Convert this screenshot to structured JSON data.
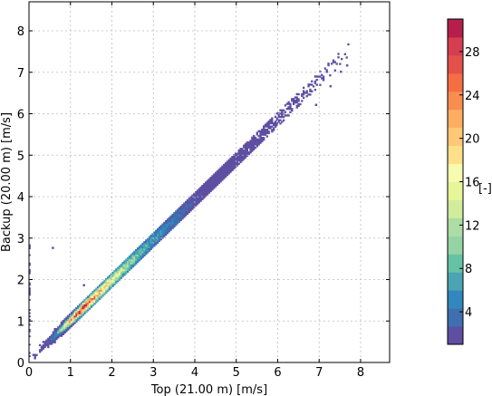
{
  "chart_data": {
    "type": "heatmap",
    "title": "",
    "xlabel": "Top (21.00 m) [m/s]",
    "ylabel": "Backup (20.00 m) [m/s]",
    "xlim": [
      0,
      8.7
    ],
    "ylim": [
      0,
      8.7
    ],
    "xticks": [
      0,
      1,
      2,
      3,
      4,
      5,
      6,
      7,
      8
    ],
    "yticks": [
      0,
      1,
      2,
      3,
      4,
      5,
      6,
      7,
      8
    ],
    "grid": true,
    "colorbar": {
      "label": "[-]",
      "range": [
        1,
        31
      ],
      "ticks": [
        4,
        8,
        12,
        16,
        20,
        24,
        28
      ],
      "colormap": "Spectral_r",
      "levels": 16,
      "colors": [
        "#5e4fa2",
        "#3e6fb0",
        "#3288bd",
        "#4ba4b1",
        "#66c2a5",
        "#94d4a4",
        "#abdda4",
        "#d1ec9c",
        "#e6f598",
        "#f7fbb0",
        "#fee08b",
        "#fec877",
        "#fdae61",
        "#f88d51",
        "#f46d43",
        "#e2514a",
        "#d53e4f",
        "#b51f4c"
      ]
    },
    "distribution": {
      "relation": "y ≈ 0.97·x + 0.05",
      "x_range": [
        0,
        7.7
      ],
      "peak_x": 1.3,
      "peak_count": 31,
      "outliers": [
        {
          "x": 0.55,
          "y": 2.75
        },
        {
          "x": 1.3,
          "y": 1.85
        },
        {
          "x": 7.65,
          "y": 7.15
        },
        {
          "x": 7.5,
          "y": 7.0
        },
        {
          "x": 7.25,
          "y": 6.65
        },
        {
          "x": 6.9,
          "y": 6.2
        }
      ]
    }
  }
}
